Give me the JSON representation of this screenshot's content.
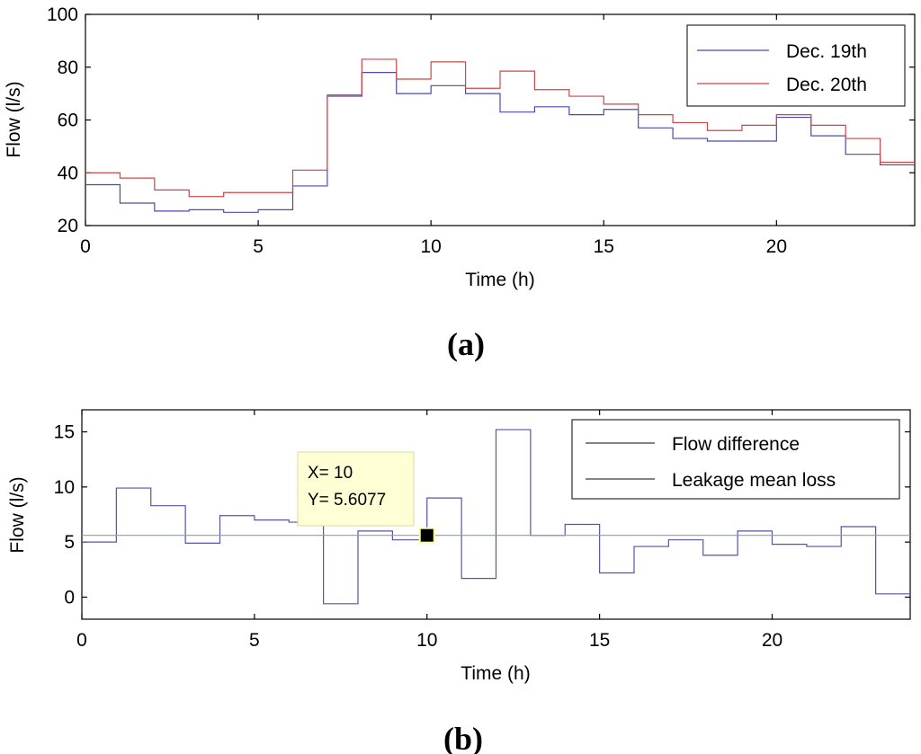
{
  "colors": {
    "series_a1": "#4a4ab0",
    "series_a2": "#d04545",
    "series_b1": "#5555a8",
    "series_b2": "#8aa3a3",
    "tooltip_bg": "#ffffd6"
  },
  "chart_data": [
    {
      "id": "a",
      "type": "line",
      "step": true,
      "panel_label": "(a)",
      "xlabel": "Time (h)",
      "ylabel": "Flow (l/s)",
      "xlim": [
        0,
        24
      ],
      "ylim": [
        20,
        100
      ],
      "xticks": [
        0,
        5,
        10,
        15,
        20
      ],
      "yticks": [
        20,
        40,
        60,
        80,
        100
      ],
      "legend_position": "top-right",
      "series": [
        {
          "name": "Dec. 19th",
          "x": [
            0,
            1,
            2,
            3,
            4,
            5,
            6,
            7,
            8,
            9,
            10,
            11,
            12,
            13,
            14,
            15,
            16,
            17,
            18,
            19,
            20,
            21,
            22,
            23,
            24
          ],
          "values": [
            35.5,
            28.5,
            25.5,
            26,
            25,
            26,
            35,
            69,
            78,
            70,
            73,
            70,
            63,
            65,
            62,
            64,
            57,
            53,
            52,
            52,
            61,
            54,
            47,
            43,
            43
          ]
        },
        {
          "name": "Dec. 20th",
          "x": [
            0,
            1,
            2,
            3,
            4,
            5,
            6,
            7,
            8,
            9,
            10,
            11,
            12,
            13,
            14,
            15,
            16,
            17,
            18,
            19,
            20,
            21,
            22,
            23,
            24
          ],
          "values": [
            40,
            38,
            33.5,
            31,
            32.5,
            32.5,
            41,
            69.5,
            83,
            75.5,
            82,
            72,
            78.5,
            71.5,
            69,
            66,
            62,
            59,
            56,
            58,
            62,
            58,
            53,
            44,
            44
          ]
        }
      ]
    },
    {
      "id": "b",
      "type": "line",
      "step": true,
      "panel_label": "(b)",
      "xlabel": "Time (h)",
      "ylabel": "Flow (l/s)",
      "xlim": [
        0,
        24
      ],
      "ylim": [
        -2,
        17
      ],
      "xticks": [
        0,
        5,
        10,
        15,
        20
      ],
      "yticks": [
        0,
        5,
        10,
        15
      ],
      "legend_position": "top-right",
      "series": [
        {
          "name": "Flow difference",
          "x": [
            0,
            1,
            2,
            3,
            4,
            5,
            6,
            7,
            8,
            9,
            10,
            11,
            12,
            13,
            14,
            15,
            16,
            17,
            18,
            19,
            20,
            21,
            22,
            23,
            24
          ],
          "values": [
            5,
            9.9,
            8.3,
            4.9,
            7.4,
            7,
            6.8,
            -0.6,
            6,
            5.2,
            9,
            1.7,
            15.2,
            5.6,
            6.6,
            2.2,
            4.6,
            5.2,
            3.8,
            6,
            4.8,
            4.6,
            6.4,
            0.3,
            0.3
          ]
        },
        {
          "name": "Leakage mean loss",
          "x": [
            0,
            24
          ],
          "values": [
            5.6077,
            5.6077
          ]
        }
      ],
      "annotation": {
        "x": 10,
        "y": 5.6077,
        "line1": "X= 10",
        "line2": "Y= 5.6077"
      }
    }
  ]
}
